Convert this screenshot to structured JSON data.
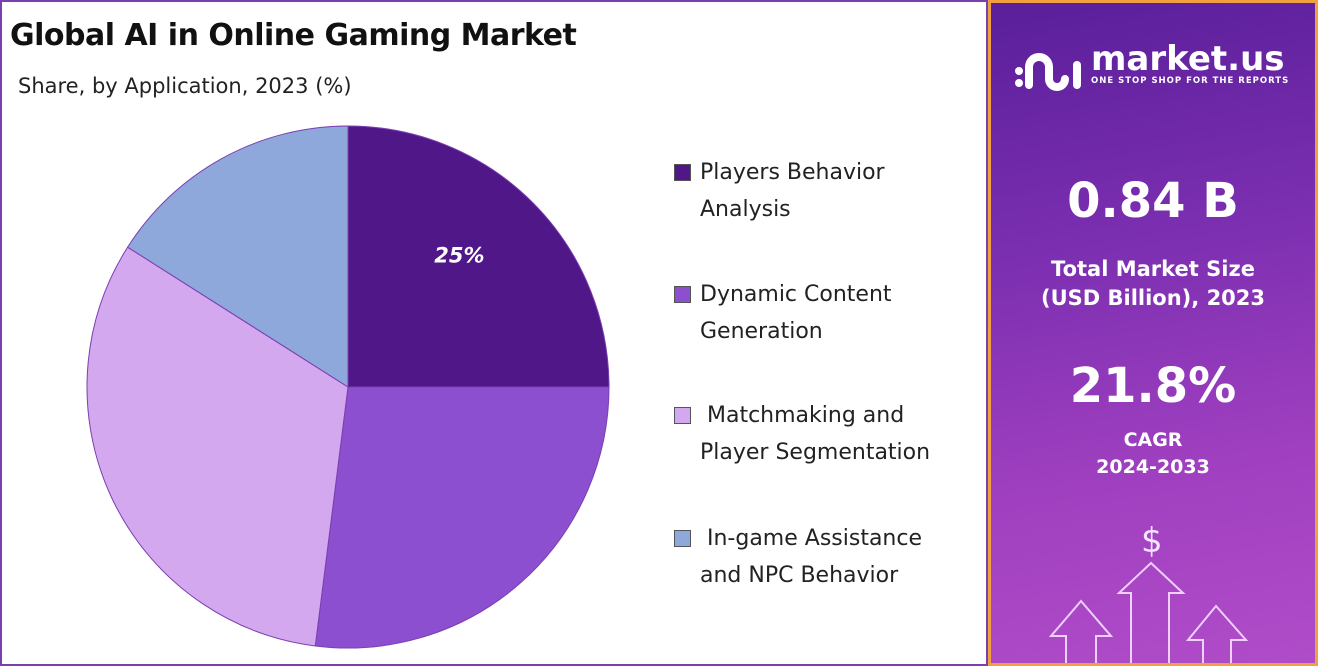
{
  "chart_data": {
    "type": "pie",
    "title": "Global AI in Online Gaming Market",
    "subtitle": "Share, by Application, 2023 (%)",
    "categories": [
      "Players Behavior Analysis",
      "Dynamic Content Generation",
      "Matchmaking and Player Segmentation",
      "In-game Assistance and NPC Behavior"
    ],
    "values": [
      25,
      27,
      32,
      16
    ],
    "colors": [
      "#4f1787",
      "#8b4fd0",
      "#d4a8ee",
      "#8fa8dc"
    ],
    "data_labels": [
      "25%",
      "",
      "",
      ""
    ],
    "legend_position": "right"
  },
  "legend": [
    {
      "line1": "Players Behavior",
      "line2": "Analysis"
    },
    {
      "line1": "Dynamic Content",
      "line2": "Generation"
    },
    {
      "line1": " Matchmaking and",
      "line2": "Player Segmentation"
    },
    {
      "line1": " In-game Assistance",
      "line2": "and NPC Behavior"
    }
  ],
  "side": {
    "brand": "market.us",
    "tagline": "ONE STOP SHOP FOR THE REPORTS",
    "market_size": "0.84 B",
    "market_size_label_1": "Total Market Size",
    "market_size_label_2": "(USD Billion), 2023",
    "cagr": "21.8%",
    "cagr_label_1": "CAGR",
    "cagr_label_2": "2024-2033",
    "dollar": "$"
  }
}
